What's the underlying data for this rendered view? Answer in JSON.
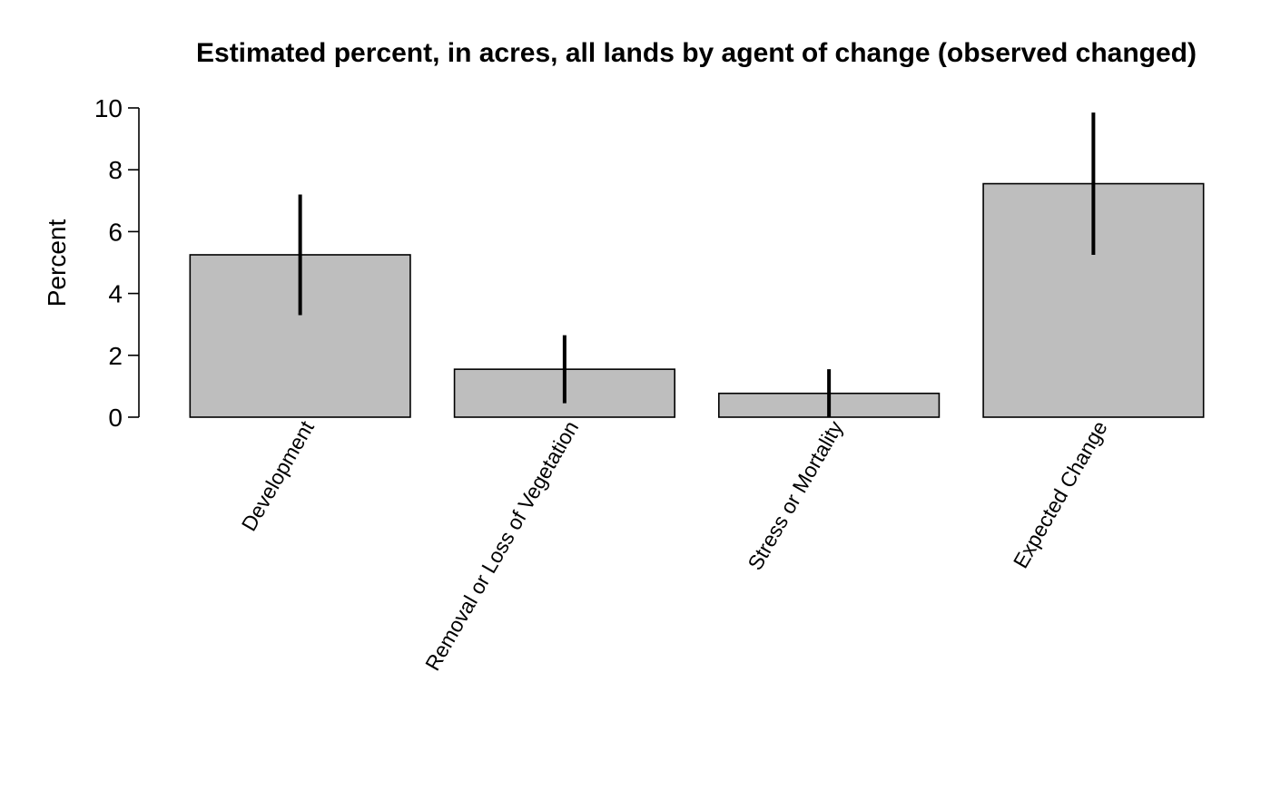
{
  "chart_data": {
    "type": "bar",
    "title": "Estimated percent, in acres, all lands by agent of change (observed changed)",
    "xlabel": "",
    "ylabel": "Percent",
    "ylim": [
      0,
      10
    ],
    "yticks": [
      "0",
      "2",
      "4",
      "6",
      "8",
      "10"
    ],
    "categories": [
      "Development",
      "Removal or Loss of Vegetation",
      "Stress or Mortality",
      "Expected Change"
    ],
    "values": [
      5.25,
      1.55,
      0.77,
      7.55
    ],
    "error_bars": [
      {
        "low": 3.3,
        "high": 7.2
      },
      {
        "low": 0.45,
        "high": 2.65
      },
      {
        "low": 0.0,
        "high": 1.55
      },
      {
        "low": 5.25,
        "high": 9.85
      }
    ],
    "grid": false,
    "legend": "none",
    "colors": {
      "bar_fill": "#bebebe",
      "bar_stroke": "#000000",
      "error_bar": "#000000",
      "axis": "#000000"
    }
  }
}
